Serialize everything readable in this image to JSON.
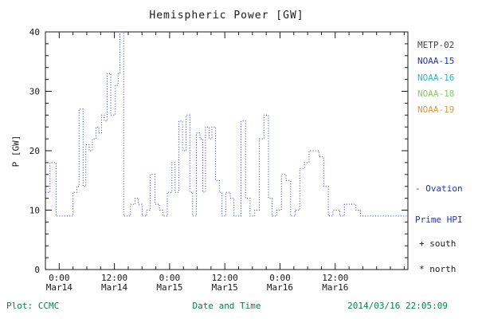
{
  "title": "Hemispheric Power [GW]",
  "legend": {
    "satellites": [
      {
        "label": "METP-02",
        "color": "#444444"
      },
      {
        "label": "NOAA-15",
        "color": "#2233cc"
      },
      {
        "label": "NOAA-16",
        "color": "#22bbcc"
      },
      {
        "label": "NOAA-18",
        "color": "#88cc66"
      },
      {
        "label": "NOAA-19",
        "color": "#dd9933"
      }
    ],
    "ovation": {
      "line1": "- Ovation",
      "line2": "Prime HPI",
      "color": "#2233cc"
    },
    "south_marker": "+ south",
    "north_marker": "* north"
  },
  "footer": {
    "left": "Plot: CCMC",
    "right": "2014/03/16 22:05:09",
    "color": "#008840"
  },
  "chart_data": {
    "type": "line",
    "title": "Hemispheric Power [GW]",
    "xlabel": "Date and Time",
    "ylabel": "P [GW]",
    "ylim": [
      0,
      40
    ],
    "yticks": [
      0,
      10,
      20,
      30,
      40
    ],
    "y_minor_step": 2,
    "x_domain_hours": [
      -3,
      75.8
    ],
    "x_minor_step_hours": 3,
    "grid": false,
    "legend_position": "right",
    "xticks": [
      {
        "hour": 0,
        "line1": "0:00",
        "line2": "Mar14"
      },
      {
        "hour": 12,
        "line1": "12:00",
        "line2": "Mar14"
      },
      {
        "hour": 24,
        "line1": "0:00",
        "line2": "Mar15"
      },
      {
        "hour": 36,
        "line1": "12:00",
        "line2": "Mar15"
      },
      {
        "hour": 48,
        "line1": "0:00",
        "line2": "Mar16"
      },
      {
        "hour": 60,
        "line1": "12:00",
        "line2": "Mar16"
      }
    ],
    "series": [
      {
        "name": "Ovation Prime HPI",
        "color": "#2233cc",
        "style": "dotted-step",
        "units": "GW",
        "points_hour_value": [
          [
            -3,
            13
          ],
          [
            -2,
            18
          ],
          [
            -0.7,
            9
          ],
          [
            3,
            13
          ],
          [
            3.8,
            14
          ],
          [
            4.3,
            27
          ],
          [
            5.2,
            14
          ],
          [
            5.8,
            21
          ],
          [
            6.5,
            20
          ],
          [
            7.2,
            22
          ],
          [
            8,
            24
          ],
          [
            8.6,
            23
          ],
          [
            9.2,
            26
          ],
          [
            9.8,
            25
          ],
          [
            10.4,
            33
          ],
          [
            11.2,
            26
          ],
          [
            12.2,
            31
          ],
          [
            12.8,
            33
          ],
          [
            13.2,
            40
          ],
          [
            14,
            9
          ],
          [
            15.5,
            11
          ],
          [
            16.5,
            12
          ],
          [
            17.2,
            11
          ],
          [
            18,
            9
          ],
          [
            19,
            10
          ],
          [
            19.8,
            16
          ],
          [
            20.8,
            11
          ],
          [
            21.8,
            10
          ],
          [
            22.5,
            9
          ],
          [
            23.5,
            13
          ],
          [
            24.5,
            18
          ],
          [
            25.2,
            13
          ],
          [
            26,
            25
          ],
          [
            26.8,
            20
          ],
          [
            27.6,
            26
          ],
          [
            28.4,
            13
          ],
          [
            29,
            9
          ],
          [
            29.8,
            23
          ],
          [
            30.6,
            22
          ],
          [
            31.2,
            13
          ],
          [
            31.8,
            24
          ],
          [
            32.6,
            22
          ],
          [
            33.2,
            24
          ],
          [
            34,
            15
          ],
          [
            34.8,
            13
          ],
          [
            35.4,
            9
          ],
          [
            36.2,
            13
          ],
          [
            37.2,
            12
          ],
          [
            38,
            9
          ],
          [
            39.5,
            25
          ],
          [
            40.5,
            12
          ],
          [
            41.5,
            9
          ],
          [
            42.5,
            10
          ],
          [
            43.5,
            22
          ],
          [
            44.5,
            26
          ],
          [
            45.5,
            12
          ],
          [
            46.3,
            9
          ],
          [
            47.3,
            10
          ],
          [
            48.3,
            16
          ],
          [
            49.3,
            15
          ],
          [
            50.3,
            9
          ],
          [
            51.3,
            10
          ],
          [
            52.3,
            17
          ],
          [
            53.3,
            18
          ],
          [
            54.3,
            20
          ],
          [
            55.5,
            20
          ],
          [
            56.5,
            19
          ],
          [
            57.5,
            14
          ],
          [
            58.5,
            9
          ],
          [
            59.5,
            10
          ],
          [
            61,
            9
          ],
          [
            62,
            11
          ],
          [
            63.5,
            11
          ],
          [
            64.5,
            10
          ],
          [
            65.5,
            9
          ],
          [
            75.8,
            9
          ]
        ]
      }
    ]
  }
}
